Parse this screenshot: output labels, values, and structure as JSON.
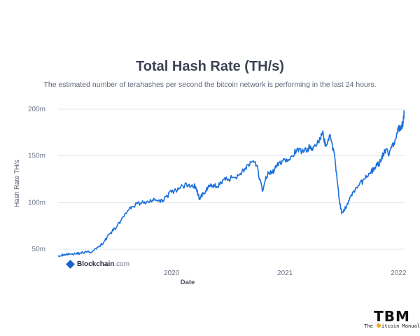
{
  "header": {
    "title": "Total Hash Rate (TH/s)",
    "subtitle": "The estimated number of terahashes per second the bitcoin network is performing in the last 24 hours."
  },
  "branding": {
    "chart_source_bold": "Blockchain",
    "chart_source_domain": ".com",
    "watermark_big": "TBM",
    "watermark_small_left": "The ",
    "watermark_small_right": "itcoin Manual",
    "watermark_icon": "bitcoin-b-icon",
    "source_icon": "blockchain-cube-icon"
  },
  "colors": {
    "line": "#1a6fdb",
    "grid": "#e3e6ec",
    "brand_blue": "#1a63c9",
    "watermark_accent": "#f0a81e"
  },
  "chart_data": {
    "type": "line",
    "xlabel": "Date",
    "ylabel": "Hash Rate TH/s",
    "yticks": [
      {
        "value": 50,
        "label": "50m"
      },
      {
        "value": 100,
        "label": "100m"
      },
      {
        "value": 150,
        "label": "150m"
      },
      {
        "value": 200,
        "label": "200m"
      }
    ],
    "xticks": [
      {
        "value": 2020.0,
        "label": "2020"
      },
      {
        "value": 2021.0,
        "label": "2021"
      },
      {
        "value": 2022.0,
        "label": "2022"
      }
    ],
    "xlim": [
      2019.0,
      2022.06
    ],
    "ylim": [
      41,
      203
    ],
    "grid": true,
    "series": [
      {
        "x": [
          2019.0,
          2019.05,
          2019.1,
          2019.15,
          2019.2,
          2019.25,
          2019.3,
          2019.35,
          2019.4,
          2019.45,
          2019.5,
          2019.55,
          2019.6,
          2019.65,
          2019.7,
          2019.75,
          2019.8,
          2019.85,
          2019.9,
          2019.95,
          2020.0,
          2020.05,
          2020.1,
          2020.15,
          2020.2,
          2020.22,
          2020.25,
          2020.28,
          2020.32,
          2020.36,
          2020.4,
          2020.45,
          2020.5,
          2020.55,
          2020.6,
          2020.65,
          2020.7,
          2020.75,
          2020.8,
          2020.85,
          2020.88,
          2020.91,
          2020.95,
          2021.0,
          2021.05,
          2021.1,
          2021.15,
          2021.2,
          2021.25,
          2021.3,
          2021.33,
          2021.36,
          2021.4,
          2021.44,
          2021.48,
          2021.5,
          2021.52,
          2021.56,
          2021.6,
          2021.65,
          2021.7,
          2021.75,
          2021.8,
          2021.85,
          2021.88,
          2021.92,
          2021.96,
          2022.0,
          2022.02,
          2022.04,
          2022.05
        ],
        "y": [
          43,
          44,
          45,
          45,
          46,
          47,
          47,
          52,
          57,
          66,
          72,
          80,
          88,
          96,
          99,
          100,
          100,
          104,
          100,
          106,
          111,
          113,
          118,
          119,
          118,
          114,
          103,
          110,
          116,
          118,
          117,
          124,
          125,
          127,
          130,
          137,
          143,
          140,
          112,
          133,
          131,
          136,
          143,
          146,
          149,
          155,
          155,
          158,
          160,
          164,
          175,
          160,
          172,
          147,
          102,
          88,
          91,
          102,
          111,
          118,
          125,
          132,
          138,
          146,
          156,
          153,
          164,
          178,
          178,
          185,
          195
        ]
      }
    ]
  }
}
